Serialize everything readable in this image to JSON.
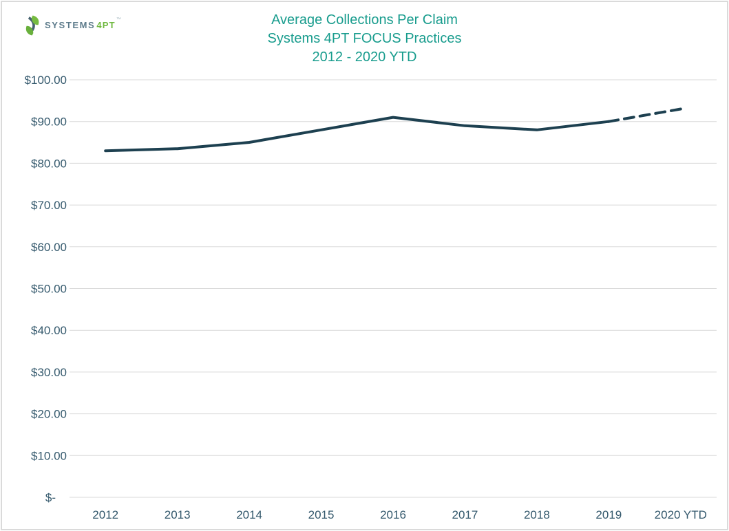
{
  "logo": {
    "text_primary": "SYSTEMS",
    "text_secondary": "4PT",
    "trademark": "™",
    "icon": "systems4pt-leaf-s-icon"
  },
  "title": {
    "line1": "Average Collections Per Claim",
    "line2": "Systems 4PT FOCUS Practices",
    "line3": "2012 - 2020 YTD"
  },
  "colors": {
    "title_text": "#189c8d",
    "axis_text": "#33586c",
    "gridline": "#d9d9d9",
    "data_line": "#1d4050",
    "frame_border": "#dadada",
    "logo_gray": "#5d7b8b",
    "logo_green": "#6fb83f"
  },
  "chart_data": {
    "type": "line",
    "title": "Average Collections Per Claim - Systems 4PT FOCUS Practices - 2012 - 2020 YTD",
    "categories": [
      "2012",
      "2013",
      "2014",
      "2015",
      "2016",
      "2017",
      "2018",
      "2019",
      "2020 YTD"
    ],
    "series": [
      {
        "name": "Average Collections Per Claim",
        "values": [
          83,
          83.5,
          85,
          88,
          91,
          89,
          88,
          90,
          93
        ],
        "dashed_from_category": "2019",
        "dashed_note": "segment from 2019 to 2020 YTD is drawn dashed (projection)"
      }
    ],
    "xlabel": "",
    "ylabel": "",
    "y_axis": {
      "min": 0,
      "max": 100,
      "tick_interval": 10,
      "ticks": [
        {
          "value": 0,
          "label": "$-"
        },
        {
          "value": 10,
          "label": "$10.00"
        },
        {
          "value": 20,
          "label": "$20.00"
        },
        {
          "value": 30,
          "label": "$30.00"
        },
        {
          "value": 40,
          "label": "$40.00"
        },
        {
          "value": 50,
          "label": "$50.00"
        },
        {
          "value": 60,
          "label": "$60.00"
        },
        {
          "value": 70,
          "label": "$70.00"
        },
        {
          "value": 80,
          "label": "$80.00"
        },
        {
          "value": 90,
          "label": "$90.00"
        },
        {
          "value": 100,
          "label": "$100.00"
        }
      ]
    },
    "grid": "horizontal-only",
    "legend": "none"
  }
}
